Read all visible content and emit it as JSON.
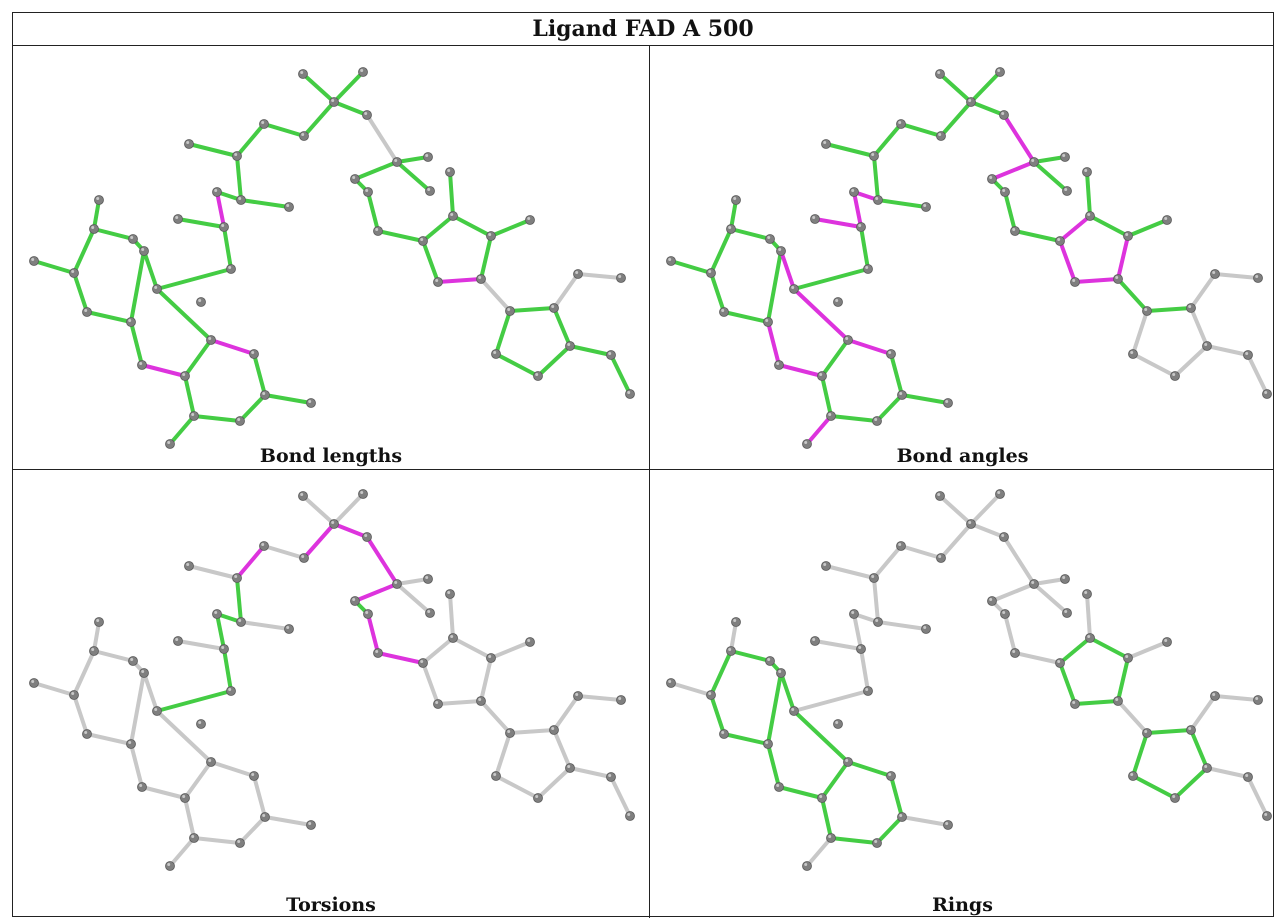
{
  "title": "Ligand FAD A 500",
  "panels": [
    {
      "id": "bond-lengths",
      "caption": "Bond lengths"
    },
    {
      "id": "bond-angles",
      "caption": "Bond angles"
    },
    {
      "id": "torsions",
      "caption": "Torsions"
    },
    {
      "id": "rings",
      "caption": "Rings"
    }
  ],
  "colors": {
    "ok": "#44cc44",
    "outlier": "#dd33dd",
    "none": "#c8c8c8",
    "atom": "#7f7f7f"
  }
}
